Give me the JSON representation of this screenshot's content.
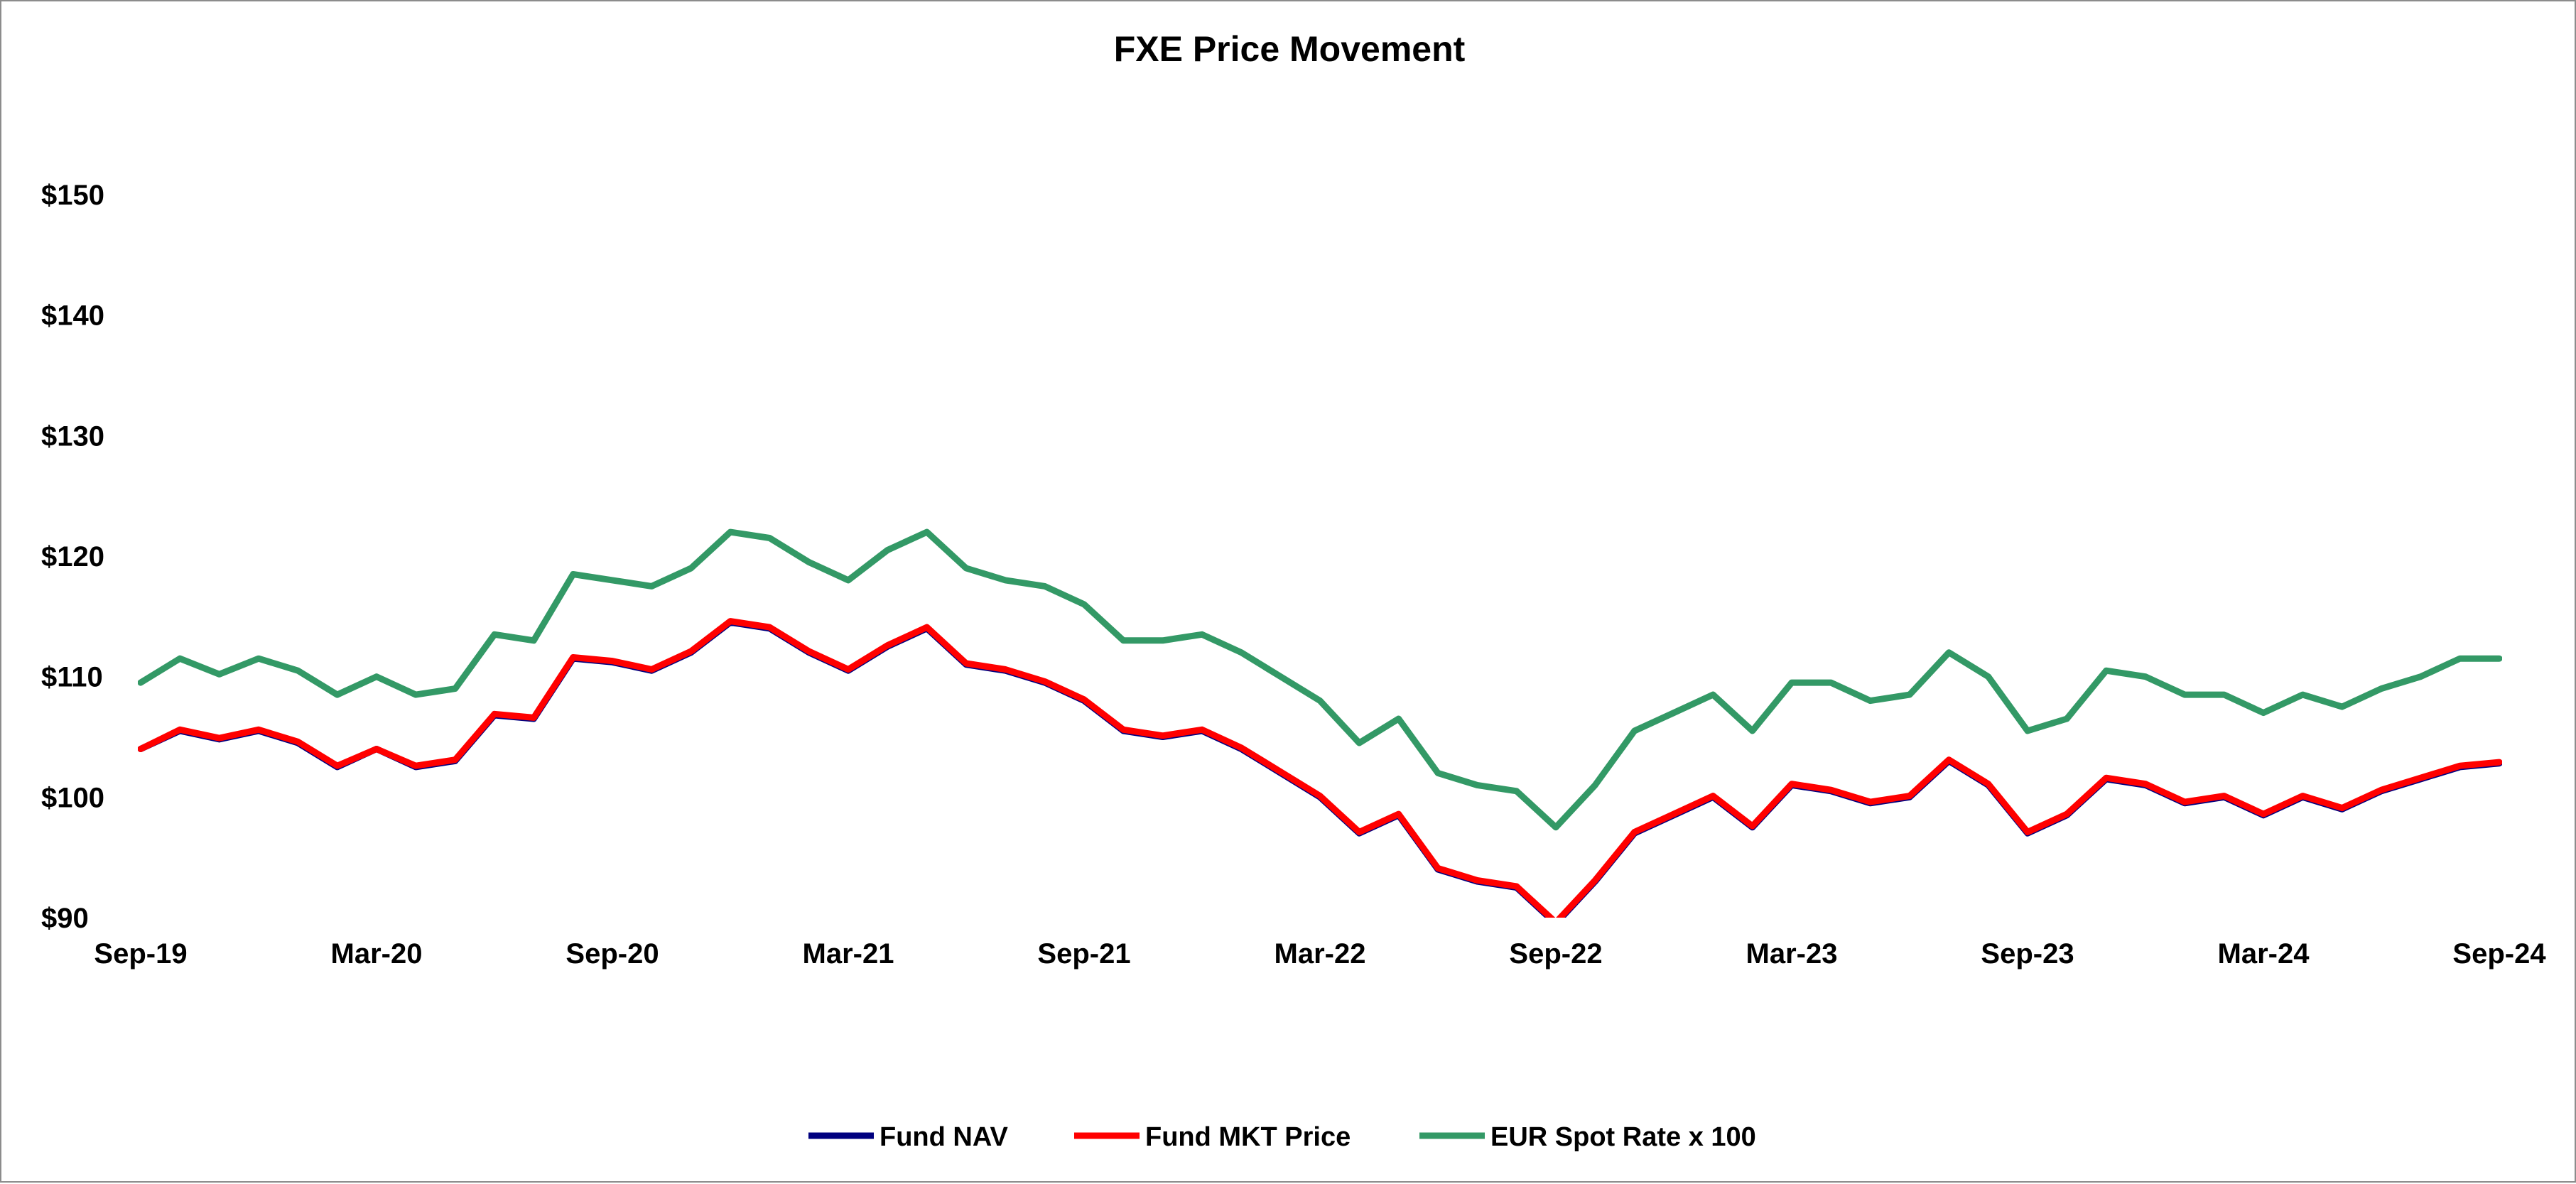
{
  "chart_data": {
    "type": "line",
    "title": "FXE Price Movement",
    "xlabel": "",
    "ylabel": "",
    "ylim": [
      90,
      150
    ],
    "y_ticks": [
      90,
      100,
      110,
      120,
      130,
      140,
      150
    ],
    "y_tick_labels": [
      "$90",
      "$100",
      "$110",
      "$120",
      "$130",
      "$140",
      "$150"
    ],
    "x_ticks": [
      "2019-09",
      "2020-03",
      "2020-09",
      "2021-03",
      "2021-09",
      "2022-03",
      "2022-09",
      "2023-03",
      "2023-09",
      "2024-03",
      "2024-09"
    ],
    "x_tick_labels": [
      "Sep-19",
      "Mar-20",
      "Sep-20",
      "Mar-21",
      "Sep-21",
      "Mar-22",
      "Sep-22",
      "Mar-23",
      "Sep-23",
      "Mar-24",
      "Sep-24"
    ],
    "xlim": [
      "2019-09",
      "2024-09"
    ],
    "grid": false,
    "legend_position": "bottom",
    "series": [
      {
        "name": "Fund NAV",
        "color": "#00007f",
        "x": [
          "2019-09",
          "2019-10",
          "2019-11",
          "2019-12",
          "2020-01",
          "2020-02",
          "2020-03",
          "2020-04",
          "2020-05",
          "2020-06",
          "2020-07",
          "2020-08",
          "2020-09",
          "2020-10",
          "2020-11",
          "2020-12",
          "2021-01",
          "2021-02",
          "2021-03",
          "2021-04",
          "2021-05",
          "2021-06",
          "2021-07",
          "2021-08",
          "2021-09",
          "2021-10",
          "2021-11",
          "2021-12",
          "2022-01",
          "2022-02",
          "2022-03",
          "2022-04",
          "2022-05",
          "2022-06",
          "2022-07",
          "2022-08",
          "2022-09",
          "2022-10",
          "2022-11",
          "2022-12",
          "2023-01",
          "2023-02",
          "2023-03",
          "2023-04",
          "2023-05",
          "2023-06",
          "2023-07",
          "2023-08",
          "2023-09",
          "2023-10",
          "2023-11",
          "2023-12",
          "2024-01",
          "2024-02",
          "2024-03",
          "2024-04",
          "2024-05",
          "2024-06",
          "2024-07",
          "2024-08",
          "2024-09"
        ],
        "values": [
          104,
          105.5,
          104.8,
          105.5,
          104.5,
          102.5,
          104,
          102.5,
          103,
          106.8,
          106.5,
          111.5,
          111.2,
          110.5,
          112,
          114.5,
          114,
          112,
          110.5,
          112.5,
          114,
          111,
          110.5,
          109.5,
          108,
          105.5,
          105,
          105.5,
          104,
          102,
          100,
          97,
          98.5,
          94,
          93,
          92.5,
          89.5,
          93,
          97,
          98.5,
          100,
          97.5,
          101,
          100.5,
          99.5,
          100,
          103,
          101,
          97,
          98.5,
          101.5,
          101,
          99.5,
          100,
          98.5,
          100,
          99,
          100.5,
          101.5,
          102.5,
          102.8
        ]
      },
      {
        "name": "Fund MKT Price",
        "color": "#ff0000",
        "x": [
          "2019-09",
          "2019-10",
          "2019-11",
          "2019-12",
          "2020-01",
          "2020-02",
          "2020-03",
          "2020-04",
          "2020-05",
          "2020-06",
          "2020-07",
          "2020-08",
          "2020-09",
          "2020-10",
          "2020-11",
          "2020-12",
          "2021-01",
          "2021-02",
          "2021-03",
          "2021-04",
          "2021-05",
          "2021-06",
          "2021-07",
          "2021-08",
          "2021-09",
          "2021-10",
          "2021-11",
          "2021-12",
          "2022-01",
          "2022-02",
          "2022-03",
          "2022-04",
          "2022-05",
          "2022-06",
          "2022-07",
          "2022-08",
          "2022-09",
          "2022-10",
          "2022-11",
          "2022-12",
          "2023-01",
          "2023-02",
          "2023-03",
          "2023-04",
          "2023-05",
          "2023-06",
          "2023-07",
          "2023-08",
          "2023-09",
          "2023-10",
          "2023-11",
          "2023-12",
          "2024-01",
          "2024-02",
          "2024-03",
          "2024-04",
          "2024-05",
          "2024-06",
          "2024-07",
          "2024-08",
          "2024-09"
        ],
        "values": [
          104,
          105.6,
          104.9,
          105.6,
          104.6,
          102.6,
          104,
          102.6,
          103.1,
          106.9,
          106.6,
          111.6,
          111.3,
          110.6,
          112.1,
          114.6,
          114.1,
          112.1,
          110.6,
          112.6,
          114.1,
          111.1,
          110.6,
          109.6,
          108.1,
          105.6,
          105.1,
          105.6,
          104.1,
          102.1,
          100.1,
          97.1,
          98.6,
          94.1,
          93.1,
          92.6,
          89.6,
          93.1,
          97.1,
          98.6,
          100.1,
          97.6,
          101.1,
          100.6,
          99.6,
          100.1,
          103.1,
          101.1,
          97.1,
          98.6,
          101.6,
          101.1,
          99.6,
          100.1,
          98.6,
          100.1,
          99.1,
          100.6,
          101.6,
          102.6,
          102.9
        ]
      },
      {
        "name": "EUR Spot Rate x 100",
        "color": "#339966",
        "x": [
          "2019-09",
          "2019-10",
          "2019-11",
          "2019-12",
          "2020-01",
          "2020-02",
          "2020-03",
          "2020-04",
          "2020-05",
          "2020-06",
          "2020-07",
          "2020-08",
          "2020-09",
          "2020-10",
          "2020-11",
          "2020-12",
          "2021-01",
          "2021-02",
          "2021-03",
          "2021-04",
          "2021-05",
          "2021-06",
          "2021-07",
          "2021-08",
          "2021-09",
          "2021-10",
          "2021-11",
          "2021-12",
          "2022-01",
          "2022-02",
          "2022-03",
          "2022-04",
          "2022-05",
          "2022-06",
          "2022-07",
          "2022-08",
          "2022-09",
          "2022-10",
          "2022-11",
          "2022-12",
          "2023-01",
          "2023-02",
          "2023-03",
          "2023-04",
          "2023-05",
          "2023-06",
          "2023-07",
          "2023-08",
          "2023-09",
          "2023-10",
          "2023-11",
          "2023-12",
          "2024-01",
          "2024-02",
          "2024-03",
          "2024-04",
          "2024-05",
          "2024-06",
          "2024-07",
          "2024-08",
          "2024-09"
        ],
        "values": [
          109.5,
          111.5,
          110.2,
          111.5,
          110.5,
          108.5,
          110,
          108.5,
          109,
          113.5,
          113,
          118.5,
          118,
          117.5,
          119,
          122,
          121.5,
          119.5,
          118,
          120.5,
          122,
          119,
          118,
          117.5,
          116,
          113,
          113,
          113.5,
          112,
          110,
          108,
          104.5,
          106.5,
          102,
          101,
          100.5,
          97.5,
          101,
          105.5,
          107,
          108.5,
          105.5,
          109.5,
          109.5,
          108,
          108.5,
          112,
          110,
          105.5,
          106.5,
          110.5,
          110,
          108.5,
          108.5,
          107,
          108.5,
          107.5,
          109,
          110,
          111.5,
          111.5
        ]
      }
    ]
  }
}
